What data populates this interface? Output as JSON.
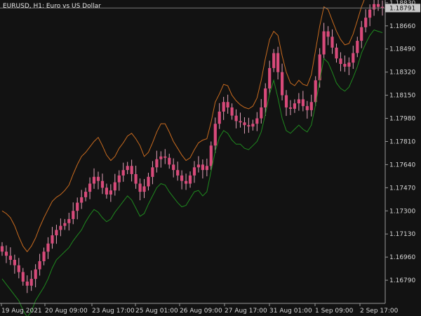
{
  "window": {
    "symbol_info": "EURUSD, H1:  Euro vs US Dollar"
  },
  "colors": {
    "background": "#121212",
    "axis": "#9a9a9a",
    "text": "#d8d8d8",
    "candle": "#d84a7a",
    "wick": "#e0a0b8",
    "upper_band": "#c96b1f",
    "lower_band": "#1f8a1f",
    "price_label_bg": "#c8c8c8",
    "price_label_text": "#111111"
  },
  "current_price": "1.18791",
  "chart_data": {
    "type": "line",
    "ylim": [
      1.1662,
      1.1885
    ],
    "y_ticks": [
      "1.18830",
      "1.18660",
      "1.18490",
      "1.18320",
      "1.18150",
      "1.17980",
      "1.17810",
      "1.17640",
      "1.17470",
      "1.17300",
      "1.17130",
      "1.16960",
      "1.16790"
    ],
    "x_ticks": [
      "19 Aug 2021",
      "20 Aug 09:00",
      "23 Aug 17:00",
      "25 Aug 01:00",
      "26 Aug 09:00",
      "27 Aug 17:00",
      "31 Aug 01:00",
      "1 Sep 09:00",
      "2 Sep 17:00"
    ],
    "series": [
      {
        "kind": "close",
        "values": [
          1.17,
          1.1697,
          1.1694,
          1.169,
          1.1685,
          1.1678,
          1.1675,
          1.168,
          1.1687,
          1.1693,
          1.17,
          1.1706,
          1.1712,
          1.1716,
          1.1719,
          1.1721,
          1.1724,
          1.173,
          1.1736,
          1.174,
          1.1744,
          1.175,
          1.1755,
          1.1752,
          1.1747,
          1.1742,
          1.1745,
          1.1751,
          1.1756,
          1.176,
          1.1763,
          1.1757,
          1.175,
          1.1744,
          1.1748,
          1.1755,
          1.1762,
          1.1768,
          1.177,
          1.1769,
          1.1764,
          1.176,
          1.1756,
          1.1752,
          1.175,
          1.1756,
          1.1762,
          1.1764,
          1.176,
          1.1763,
          1.1778,
          1.1794,
          1.1803,
          1.181,
          1.1806,
          1.18,
          1.1796,
          1.1795,
          1.1793,
          1.1792,
          1.1794,
          1.1798,
          1.1806,
          1.182,
          1.1835,
          1.1846,
          1.1832,
          1.1815,
          1.1806,
          1.1805,
          1.1809,
          1.1812,
          1.1807,
          1.1804,
          1.181,
          1.1826,
          1.1845,
          1.1862,
          1.1858,
          1.185,
          1.1842,
          1.1838,
          1.1836,
          1.1839,
          1.1846,
          1.1855,
          1.1865,
          1.1872,
          1.1878,
          1.1882,
          1.188,
          1.1879
        ]
      },
      {
        "kind": "upper_band",
        "values": [
          1.173,
          1.1728,
          1.1725,
          1.1719,
          1.1711,
          1.1704,
          1.17,
          1.1704,
          1.171,
          1.1718,
          1.1725,
          1.1731,
          1.1737,
          1.174,
          1.1742,
          1.1745,
          1.1749,
          1.1757,
          1.1764,
          1.177,
          1.1773,
          1.1777,
          1.1781,
          1.1784,
          1.1778,
          1.1771,
          1.1767,
          1.177,
          1.1776,
          1.178,
          1.1785,
          1.1787,
          1.1783,
          1.1778,
          1.177,
          1.1773,
          1.178,
          1.1788,
          1.1794,
          1.1794,
          1.1788,
          1.1781,
          1.1776,
          1.1771,
          1.1767,
          1.1769,
          1.1775,
          1.178,
          1.1782,
          1.1783,
          1.1795,
          1.181,
          1.1816,
          1.1823,
          1.1822,
          1.1815,
          1.1811,
          1.1808,
          1.1806,
          1.1805,
          1.1807,
          1.1813,
          1.1826,
          1.1842,
          1.1856,
          1.1862,
          1.1859,
          1.1844,
          1.1832,
          1.1824,
          1.1822,
          1.1826,
          1.1823,
          1.1822,
          1.183,
          1.1848,
          1.1866,
          1.188,
          1.1878,
          1.187,
          1.1862,
          1.1856,
          1.1852,
          1.1853,
          1.186,
          1.187,
          1.188,
          1.1888,
          1.1892,
          1.1894,
          1.1893,
          1.1892
        ]
      },
      {
        "kind": "lower_band",
        "values": [
          1.168,
          1.1676,
          1.1672,
          1.1668,
          1.1664,
          1.1657,
          1.1652,
          1.1656,
          1.1664,
          1.1669,
          1.1674,
          1.168,
          1.1688,
          1.1694,
          1.1697,
          1.17,
          1.1703,
          1.1708,
          1.1712,
          1.1716,
          1.1722,
          1.1727,
          1.1731,
          1.1729,
          1.1725,
          1.1722,
          1.1724,
          1.1729,
          1.1733,
          1.1737,
          1.1741,
          1.1738,
          1.1732,
          1.1726,
          1.1728,
          1.1735,
          1.1741,
          1.1747,
          1.175,
          1.1749,
          1.1744,
          1.174,
          1.1736,
          1.1733,
          1.1734,
          1.1739,
          1.1744,
          1.1745,
          1.1741,
          1.1744,
          1.1759,
          1.1774,
          1.1784,
          1.1789,
          1.1787,
          1.1782,
          1.1779,
          1.1779,
          1.1776,
          1.1775,
          1.1778,
          1.1781,
          1.1788,
          1.1801,
          1.1816,
          1.1826,
          1.1813,
          1.1798,
          1.1789,
          1.1787,
          1.179,
          1.1793,
          1.179,
          1.1788,
          1.1793,
          1.1808,
          1.1826,
          1.1842,
          1.1839,
          1.1832,
          1.1824,
          1.182,
          1.1818,
          1.1821,
          1.1828,
          1.1836,
          1.1846,
          1.1853,
          1.1859,
          1.1863,
          1.1862,
          1.1861
        ]
      }
    ]
  }
}
